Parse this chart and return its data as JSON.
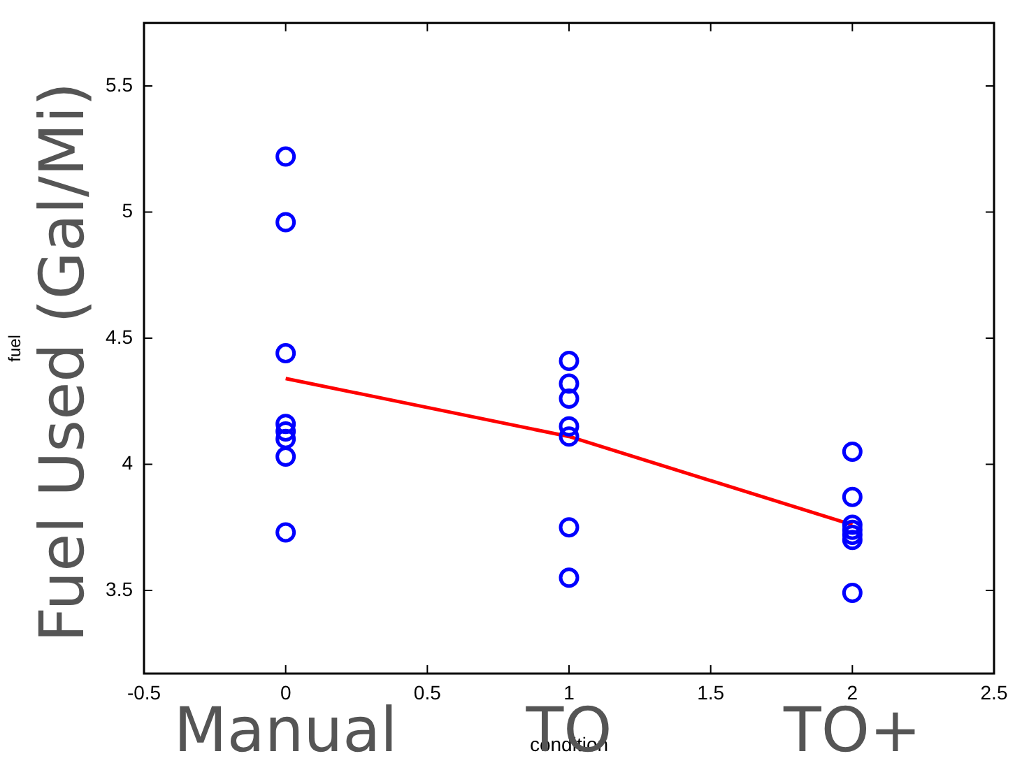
{
  "chart_data": {
    "type": "scatter",
    "xlabel": "condition",
    "ylabel": "fuel",
    "xlim": [
      -0.5,
      2.5
    ],
    "xticks": [
      -0.5,
      0,
      0.5,
      1,
      1.5,
      2,
      2.5
    ],
    "ylim": [
      3.17,
      5.75
    ],
    "yticks": [
      3.5,
      4,
      4.5,
      5,
      5.5
    ],
    "grid": false,
    "legend": false,
    "series": [
      {
        "type": "scatter",
        "marker": "circle",
        "color": "#0000ff",
        "x": [
          0,
          0,
          0,
          0,
          0,
          0,
          0,
          0,
          1,
          1,
          1,
          1,
          1,
          1,
          1,
          2,
          2,
          2,
          2,
          2,
          2,
          2
        ],
        "values": [
          5.22,
          4.96,
          4.44,
          4.16,
          4.13,
          4.1,
          4.03,
          3.73,
          4.41,
          4.32,
          4.26,
          4.15,
          4.11,
          3.75,
          3.55,
          4.05,
          3.87,
          3.76,
          3.74,
          3.72,
          3.7,
          3.49
        ]
      },
      {
        "type": "line",
        "marker": "none",
        "line_style": "solid",
        "color": "#ff0000",
        "x": [
          0,
          1,
          2
        ],
        "values": [
          4.34,
          4.11,
          3.76
        ]
      }
    ],
    "annotations": [
      "Fuel Used (Gal/Mi)",
      "Manual",
      "TO",
      "TO+"
    ]
  }
}
